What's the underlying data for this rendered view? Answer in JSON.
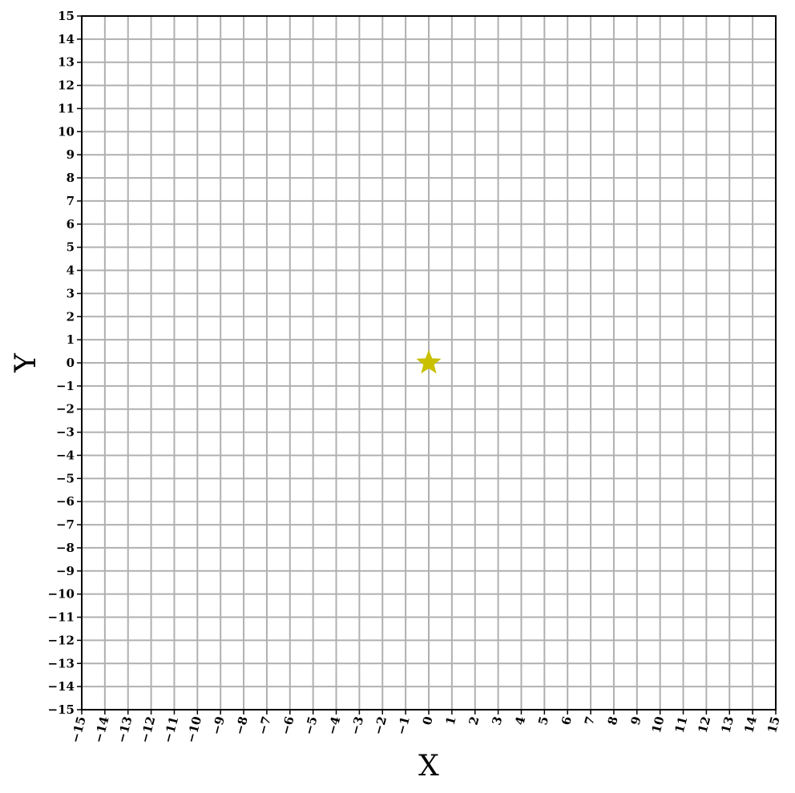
{
  "chart_data": {
    "type": "scatter",
    "xlabel": "X",
    "ylabel": "Y",
    "xlim": [
      -15,
      15
    ],
    "ylim": [
      -15,
      15
    ],
    "x_ticks": [
      -15,
      -14,
      -13,
      -12,
      -11,
      -10,
      -9,
      -8,
      -7,
      -6,
      -5,
      -4,
      -3,
      -2,
      -1,
      0,
      1,
      2,
      3,
      4,
      5,
      6,
      7,
      8,
      9,
      10,
      11,
      12,
      13,
      14,
      15
    ],
    "y_ticks": [
      -15,
      -14,
      -13,
      -12,
      -11,
      -10,
      -9,
      -8,
      -7,
      -6,
      -5,
      -4,
      -3,
      -2,
      -1,
      0,
      1,
      2,
      3,
      4,
      5,
      6,
      7,
      8,
      9,
      10,
      11,
      12,
      13,
      14,
      15
    ],
    "x_tick_rotation": "rotated",
    "grid": true,
    "grid_color": "#b0b0b0",
    "points": [
      {
        "x": 0,
        "y": 0,
        "marker": "star",
        "color": "#c8c000"
      }
    ]
  }
}
